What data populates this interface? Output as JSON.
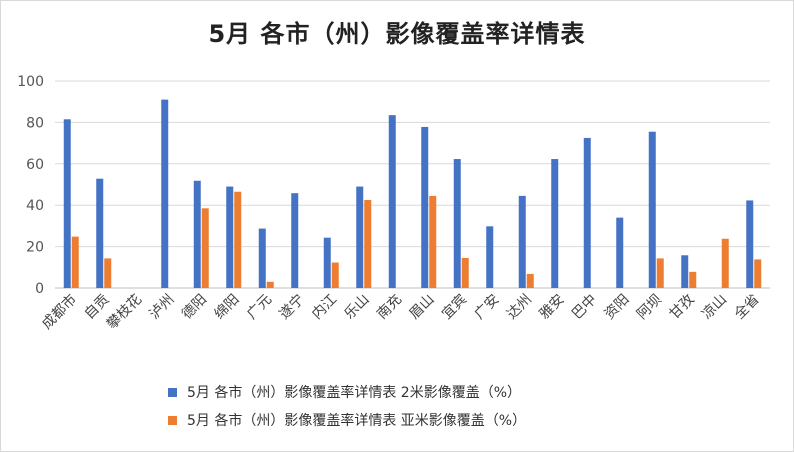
{
  "chart_data": {
    "type": "bar",
    "title": "5月 各市（州）影像覆盖率详情表",
    "ylim": [
      0,
      100
    ],
    "yticks": [
      0,
      20,
      40,
      60,
      80,
      100
    ],
    "grid": true,
    "legend_position": "bottom",
    "categories": [
      "成都市",
      "自贡",
      "攀枝花",
      "泸州",
      "德阳",
      "绵阳",
      "广元",
      "遂宁",
      "内江",
      "乐山",
      "南充",
      "眉山",
      "宜宾",
      "广安",
      "达州",
      "雅安",
      "巴中",
      "资阳",
      "阿坝",
      "甘孜",
      "凉山",
      "全省"
    ],
    "series": [
      {
        "name": "5月 各市（州）影像覆盖率详情表 2米影像覆盖（%）",
        "color": "#4472C4",
        "values": [
          81.5,
          52.8,
          null,
          91,
          51.8,
          49,
          28.7,
          45.8,
          24.3,
          49,
          83.5,
          77.8,
          62.3,
          29.8,
          44.5,
          62.3,
          72.5,
          34,
          75.5,
          15.8,
          null,
          42.3
        ]
      },
      {
        "name": "5月 各市（州）影像覆盖率详情表 亚米影像覆盖（%）",
        "color": "#ED7D31",
        "values": [
          24.8,
          14.3,
          null,
          null,
          38.5,
          46.5,
          3,
          null,
          12.3,
          42.5,
          null,
          44.5,
          14.5,
          null,
          6.8,
          null,
          null,
          null,
          14.3,
          7.8,
          23.8,
          13.8
        ]
      }
    ]
  }
}
